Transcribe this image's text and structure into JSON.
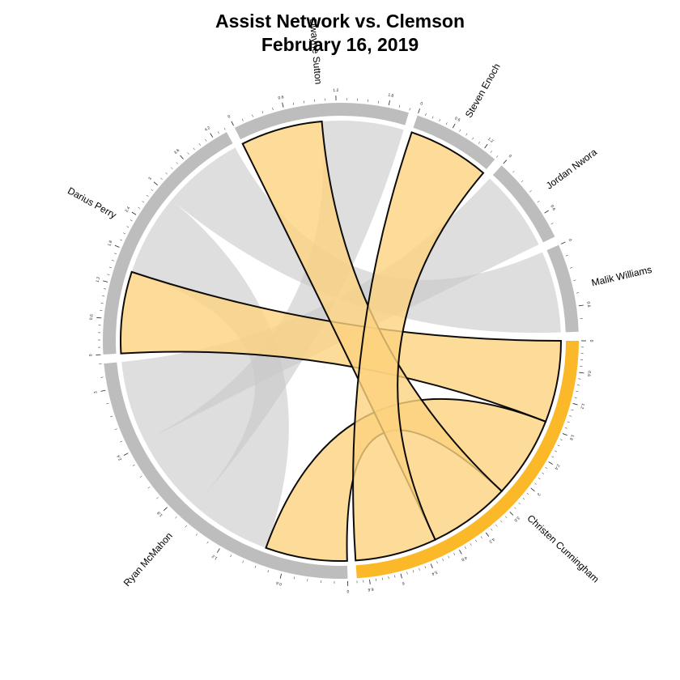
{
  "title": {
    "line1": "Assist Network vs. Clemson",
    "line2": "February 16, 2019"
  },
  "colors": {
    "highlight_arc": "#fbb829",
    "other_arc": "#bdbdbd",
    "highlight_chord": "#fcd27e",
    "other_chord": "#c8c8c8"
  },
  "chart_data": {
    "type": "chord",
    "highlighted_player": "Christen Cunningham",
    "players": [
      {
        "name": "Christen Cunningham",
        "total": 5,
        "ticks": [
          "0",
          "0.6",
          "1.2",
          "1.8",
          "2.4",
          "3",
          "3.6",
          "4.2",
          "4.8",
          "5.4",
          "6",
          "6.6"
        ]
      },
      {
        "name": "Ryan McMahon",
        "total": 3,
        "ticks": [
          "0",
          "0.6",
          "1.2",
          "1.8",
          "2.4",
          "3"
        ]
      },
      {
        "name": "Darius Perry",
        "total": 3,
        "ticks": [
          "0",
          "0.6",
          "1.2",
          "1.8",
          "2.4",
          "3",
          "3.6",
          "4.2"
        ]
      },
      {
        "name": "Dwayne Sutton",
        "total": 2,
        "ticks": [
          "0",
          "0.6",
          "1.2",
          "1.8"
        ]
      },
      {
        "name": "Steven Enoch",
        "total": 1,
        "ticks": [
          "0",
          "0.6",
          "1.2"
        ]
      },
      {
        "name": "Jordan Nwora",
        "total": 1,
        "ticks": [
          "0",
          "0.6"
        ]
      },
      {
        "name": "Malik Williams",
        "total": 1,
        "ticks": [
          "0",
          "0.6"
        ]
      }
    ],
    "links": [
      {
        "from": "Christen Cunningham",
        "to": "Darius Perry",
        "value": 1
      },
      {
        "from": "Christen Cunningham",
        "to": "Ryan McMahon",
        "value": 1
      },
      {
        "from": "Christen Cunningham",
        "to": "Dwayne Sutton",
        "value": 1
      },
      {
        "from": "Christen Cunningham",
        "to": "Steven Enoch",
        "value": 1
      },
      {
        "from": "Darius Perry",
        "to": "Ryan McMahon",
        "value": 1
      },
      {
        "from": "Darius Perry",
        "to": "Malik Williams",
        "value": 1
      },
      {
        "from": "Ryan McMahon",
        "to": "Dwayne Sutton",
        "value": 1
      },
      {
        "from": "Ryan McMahon",
        "to": "Jordan Nwora",
        "value": 1
      }
    ]
  }
}
